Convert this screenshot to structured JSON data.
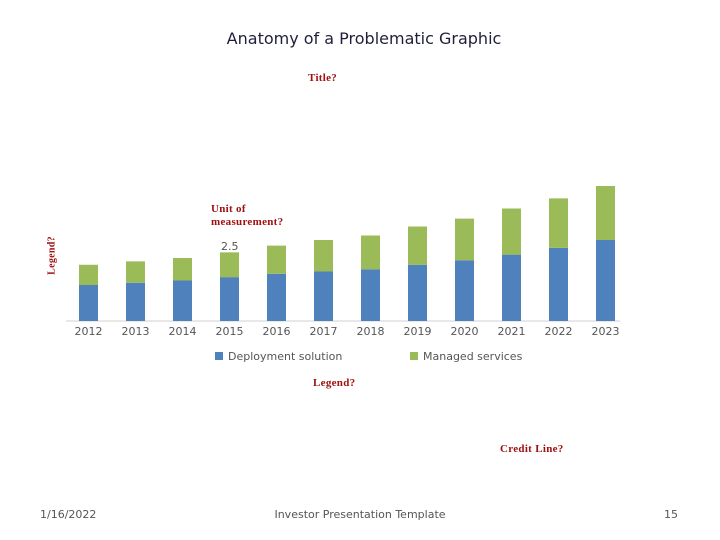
{
  "slide": {
    "title": "Anatomy of a Problematic Graphic",
    "annotations": {
      "title": "Title?",
      "unit": "Unit of measurement?",
      "legend_side": "Legend?",
      "legend_bottom": "Legend?",
      "credit": "Credit Line?"
    },
    "footer": {
      "date": "1/16/2022",
      "center": "Investor Presentation Template",
      "page": "15"
    }
  },
  "chart_data": {
    "type": "bar",
    "stacked": true,
    "title": "",
    "xlabel": "",
    "ylabel": "",
    "ylim": [
      0,
      6
    ],
    "tick_label": "2.5",
    "categories": [
      "2012",
      "2013",
      "2014",
      "2015",
      "2016",
      "2017",
      "2018",
      "2019",
      "2020",
      "2021",
      "2022",
      "2023"
    ],
    "series": [
      {
        "name": "Deployment solution",
        "color": "#4f81bd",
        "values": [
          1.6,
          1.7,
          1.8,
          1.95,
          2.1,
          2.2,
          2.3,
          2.5,
          2.7,
          2.95,
          3.25,
          3.6
        ]
      },
      {
        "name": "Managed services",
        "color": "#9bbb59",
        "values": [
          0.9,
          0.95,
          1.0,
          1.1,
          1.25,
          1.4,
          1.5,
          1.7,
          1.85,
          2.05,
          2.2,
          2.4
        ]
      }
    ],
    "legend_position": "bottom"
  }
}
